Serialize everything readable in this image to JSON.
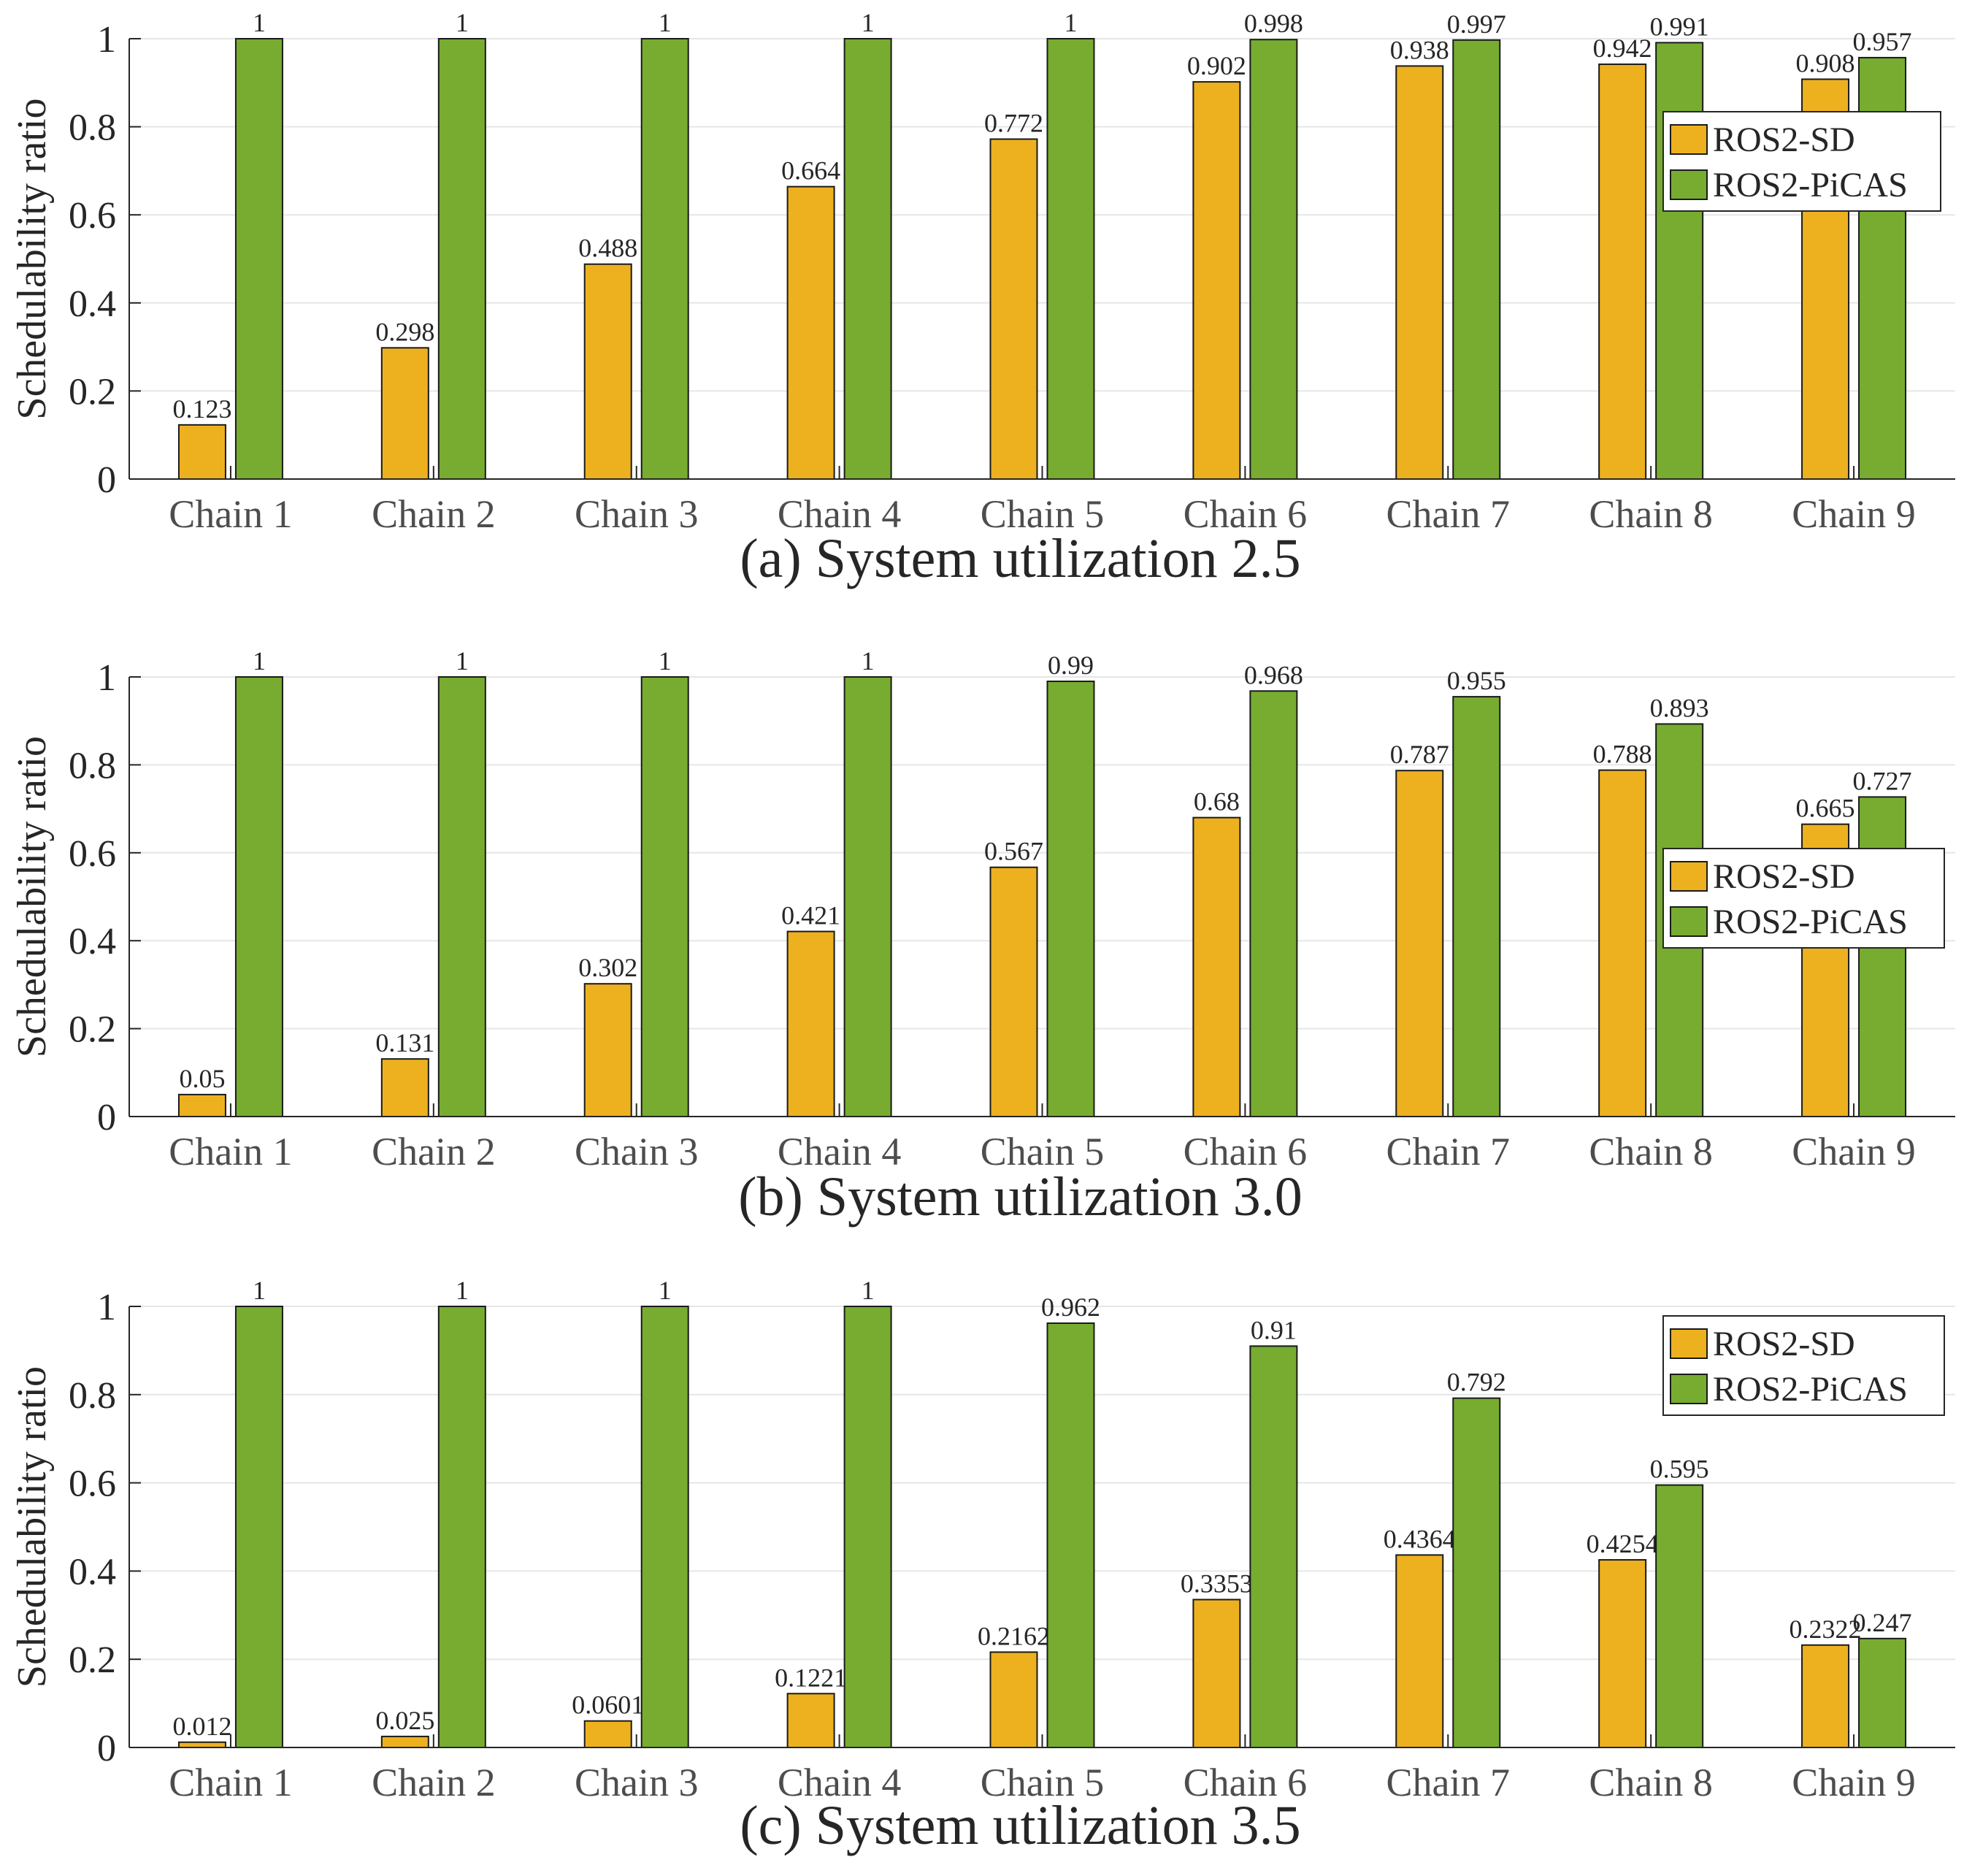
{
  "colors": {
    "ros2_sd": "#edb120",
    "ros2_picas": "#77ac30"
  },
  "chart_data": [
    {
      "type": "bar",
      "title": "",
      "caption": "(a) System utilization 2.5",
      "xlabel": "",
      "ylabel": "Schedulability ratio",
      "ylim": [
        0,
        1
      ],
      "yticks": [
        "0",
        "0.2",
        "0.4",
        "0.6",
        "0.8",
        "1"
      ],
      "grid": true,
      "legend_position": "right",
      "categories": [
        "Chain 1",
        "Chain 2",
        "Chain 3",
        "Chain 4",
        "Chain 5",
        "Chain 6",
        "Chain 7",
        "Chain 8",
        "Chain 9"
      ],
      "series": [
        {
          "name": "ROS2-SD",
          "values": [
            0.123,
            0.298,
            0.488,
            0.664,
            0.772,
            0.902,
            0.938,
            0.942,
            0.908
          ],
          "labels": [
            "0.123",
            "0.298",
            "0.488",
            "0.664",
            "0.772",
            "0.902",
            "0.938",
            "0.942",
            "0.908"
          ]
        },
        {
          "name": "ROS2-PiCAS",
          "values": [
            1,
            1,
            1,
            1,
            1,
            0.998,
            0.997,
            0.991,
            0.957
          ],
          "labels": [
            "1",
            "1",
            "1",
            "1",
            "1",
            "0.998",
            "0.997",
            "0.991",
            "0.957"
          ]
        }
      ]
    },
    {
      "type": "bar",
      "title": "",
      "caption": "(b) System utilization 3.0",
      "xlabel": "",
      "ylabel": "Schedulability ratio",
      "ylim": [
        0,
        1
      ],
      "yticks": [
        "0",
        "0.2",
        "0.4",
        "0.6",
        "0.8",
        "1"
      ],
      "grid": true,
      "legend_position": "right",
      "categories": [
        "Chain 1",
        "Chain 2",
        "Chain 3",
        "Chain 4",
        "Chain 5",
        "Chain 6",
        "Chain 7",
        "Chain 8",
        "Chain 9"
      ],
      "series": [
        {
          "name": "ROS2-SD",
          "values": [
            0.05,
            0.131,
            0.302,
            0.421,
            0.567,
            0.68,
            0.787,
            0.788,
            0.665
          ],
          "labels": [
            "0.05",
            "0.131",
            "0.302",
            "0.421",
            "0.567",
            "0.68",
            "0.787",
            "0.788",
            "0.665"
          ]
        },
        {
          "name": "ROS2-PiCAS",
          "values": [
            1,
            1,
            1,
            1,
            0.99,
            0.968,
            0.955,
            0.893,
            0.727
          ],
          "labels": [
            "1",
            "1",
            "1",
            "1",
            "0.99",
            "0.968",
            "0.955",
            "0.893",
            "0.727"
          ]
        }
      ]
    },
    {
      "type": "bar",
      "title": "",
      "caption": "(c) System utilization 3.5",
      "xlabel": "",
      "ylabel": "Schedulability ratio",
      "ylim": [
        0,
        1
      ],
      "yticks": [
        "0",
        "0.2",
        "0.4",
        "0.6",
        "0.8",
        "1"
      ],
      "grid": true,
      "legend_position": "top-right",
      "categories": [
        "Chain 1",
        "Chain 2",
        "Chain 3",
        "Chain 4",
        "Chain 5",
        "Chain 6",
        "Chain 7",
        "Chain 8",
        "Chain 9"
      ],
      "series": [
        {
          "name": "ROS2-SD",
          "values": [
            0.012,
            0.025,
            0.0601,
            0.1221,
            0.2162,
            0.3353,
            0.4364,
            0.4254,
            0.2322
          ],
          "labels": [
            "0.012",
            "0.025",
            "0.0601",
            "0.1221",
            "0.2162",
            "0.3353",
            "0.4364",
            "0.4254",
            "0.2322"
          ]
        },
        {
          "name": "ROS2-PiCAS",
          "values": [
            1,
            1,
            1,
            1,
            0.962,
            0.91,
            0.792,
            0.595,
            0.247
          ],
          "labels": [
            "1",
            "1",
            "1",
            "1",
            "0.962",
            "0.91",
            "0.792",
            "0.595",
            "0.247"
          ]
        }
      ]
    }
  ]
}
